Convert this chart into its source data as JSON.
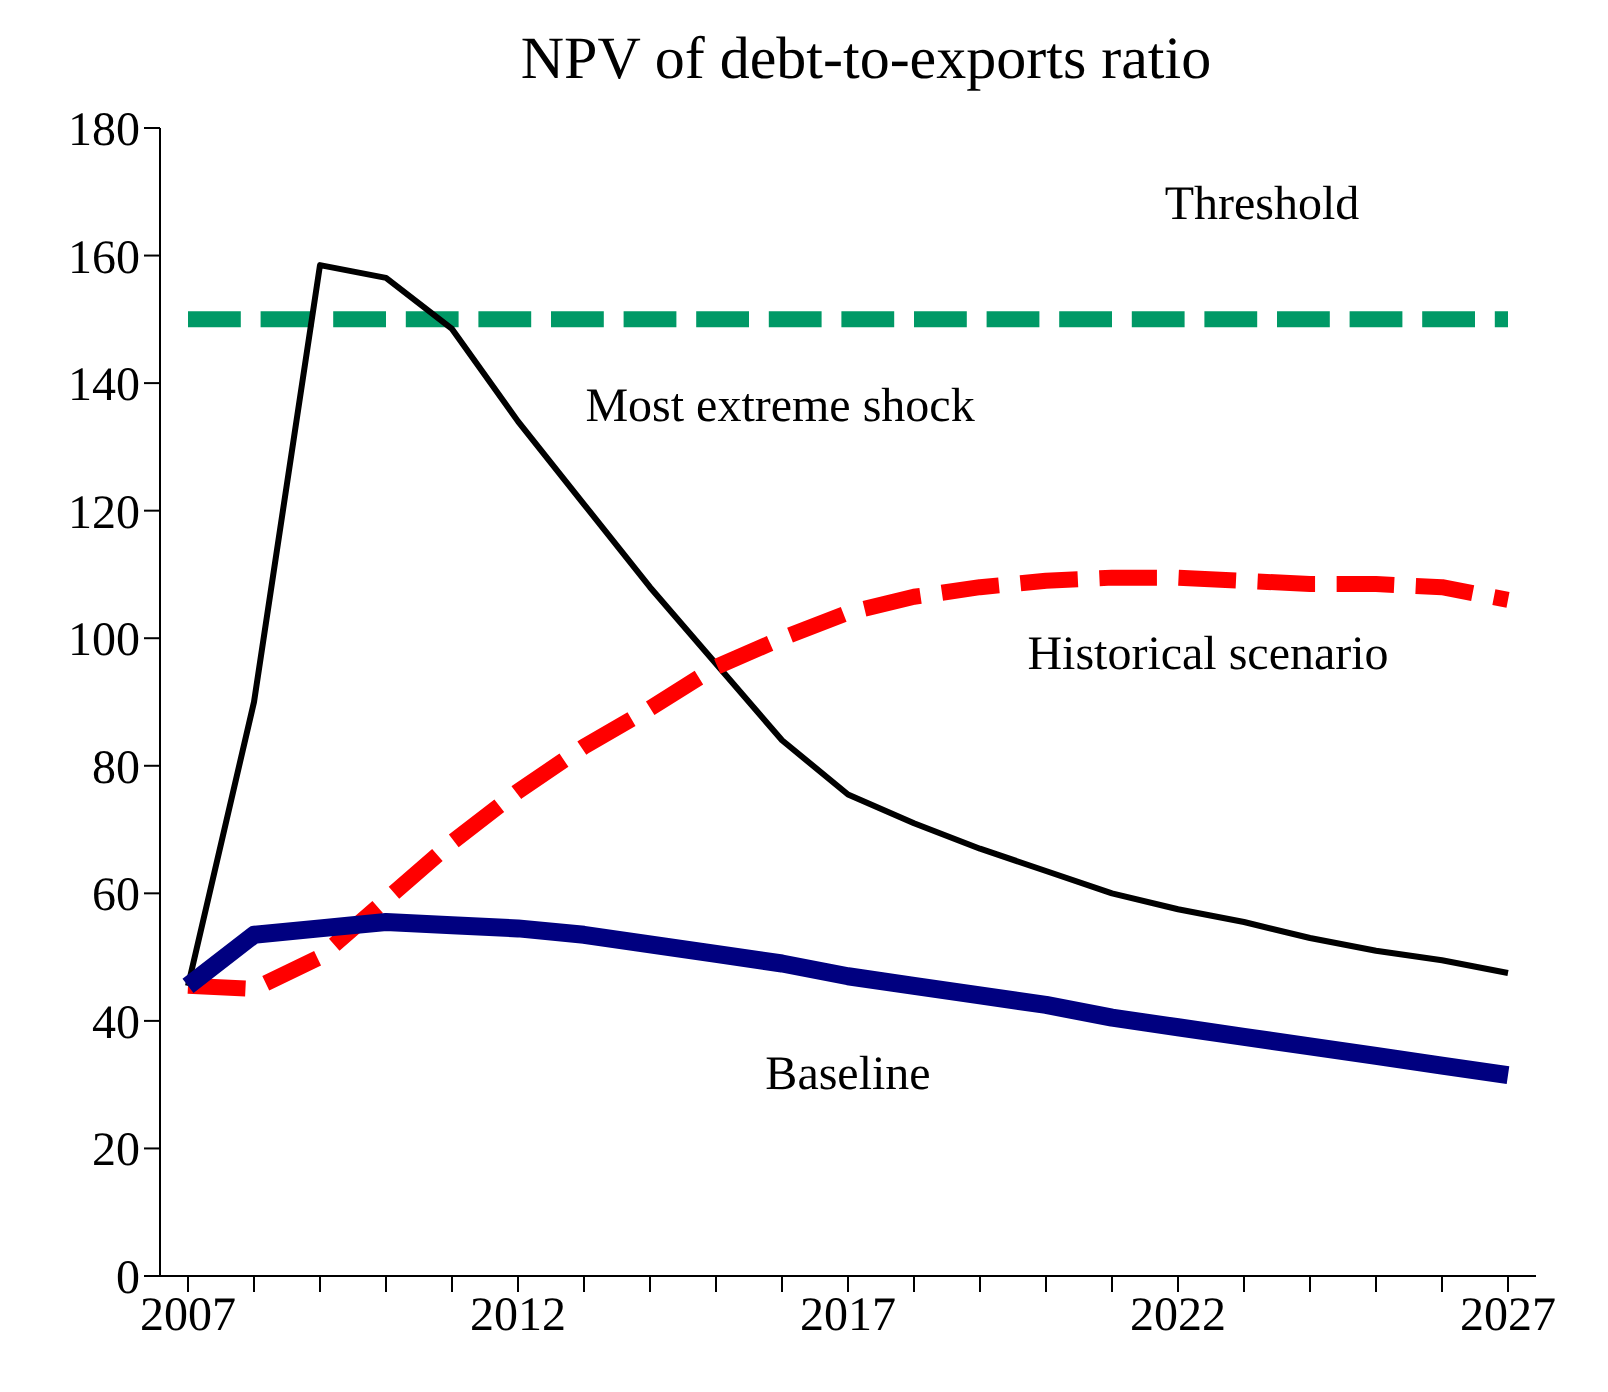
{
  "chart_data": {
    "type": "line",
    "title": "NPV of debt-to-exports ratio",
    "categories": [
      "2007",
      null,
      null,
      null,
      null,
      "2012",
      null,
      null,
      null,
      null,
      "2017",
      null,
      null,
      null,
      null,
      "2022",
      null,
      null,
      null,
      null,
      "2027"
    ],
    "ylim": [
      0,
      180
    ],
    "yticks": [
      0,
      20,
      40,
      60,
      80,
      100,
      120,
      140,
      160,
      180
    ],
    "marker": "none",
    "series": [
      {
        "name": "Threshold",
        "color": "#009966",
        "line_style": "dashed",
        "values": [
          150,
          150,
          150,
          150,
          150,
          150,
          150,
          150,
          150,
          150,
          150,
          150,
          150,
          150,
          150,
          150,
          150,
          150,
          150,
          150,
          150
        ]
      },
      {
        "name": "Most extreme shock",
        "color": "#000000",
        "line_style": "solid",
        "values": [
          45.5,
          90,
          158.5,
          156.5,
          148.5,
          134,
          121,
          108,
          96,
          84,
          75.5,
          71,
          67,
          63.5,
          60,
          57.5,
          55.5,
          53,
          51,
          49.5,
          47.5
        ]
      },
      {
        "name": "Historical scenario",
        "color": "#ff0000",
        "line_style": "dashed",
        "values": [
          45.5,
          45,
          50,
          59,
          68,
          76,
          83,
          89,
          95.5,
          100,
          104,
          106.5,
          108,
          109,
          109.5,
          109.5,
          109,
          108.5,
          108.5,
          108,
          106
        ]
      },
      {
        "name": "Baseline",
        "color": "#000080",
        "line_style": "solid",
        "values": [
          45.5,
          53.5,
          54.5,
          55.5,
          55,
          54.5,
          53.5,
          52,
          50.5,
          49,
          47,
          45.5,
          44,
          42.5,
          40.5,
          39,
          37.5,
          36,
          34.5,
          33,
          31.5
        ]
      }
    ]
  }
}
